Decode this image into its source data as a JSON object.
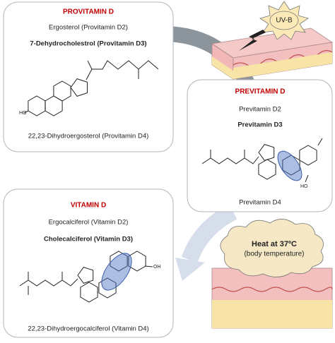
{
  "provitamin": {
    "title": "PROVITAMIN D",
    "d2": "Ergosterol (Provitamin D2)",
    "d3": "7-Dehydrocholestrol (Provitamin D3)",
    "d4": "22,23-Dihydroergosterol (Provitamin D4)",
    "hydroxyl": "HO"
  },
  "previtamin": {
    "title": "PREVITAMIN D",
    "d2": "Previtamin D2",
    "d3": "Previtamin D3",
    "d4": "Previtamin D4",
    "hydroxyl": "HO"
  },
  "vitamin": {
    "title": "VITAMIN D",
    "d2": "Ergocalciferol (Vitamin D2)",
    "d3": "Cholecalciferol (Vitamin D3)",
    "d4": "22,23-Dihydroergocalciferol (Vitamin D4)",
    "hydroxyl": "OH"
  },
  "uv": "UV-B",
  "heat": {
    "title": "Heat at 37ºC",
    "subtitle": "(body temperature)"
  }
}
